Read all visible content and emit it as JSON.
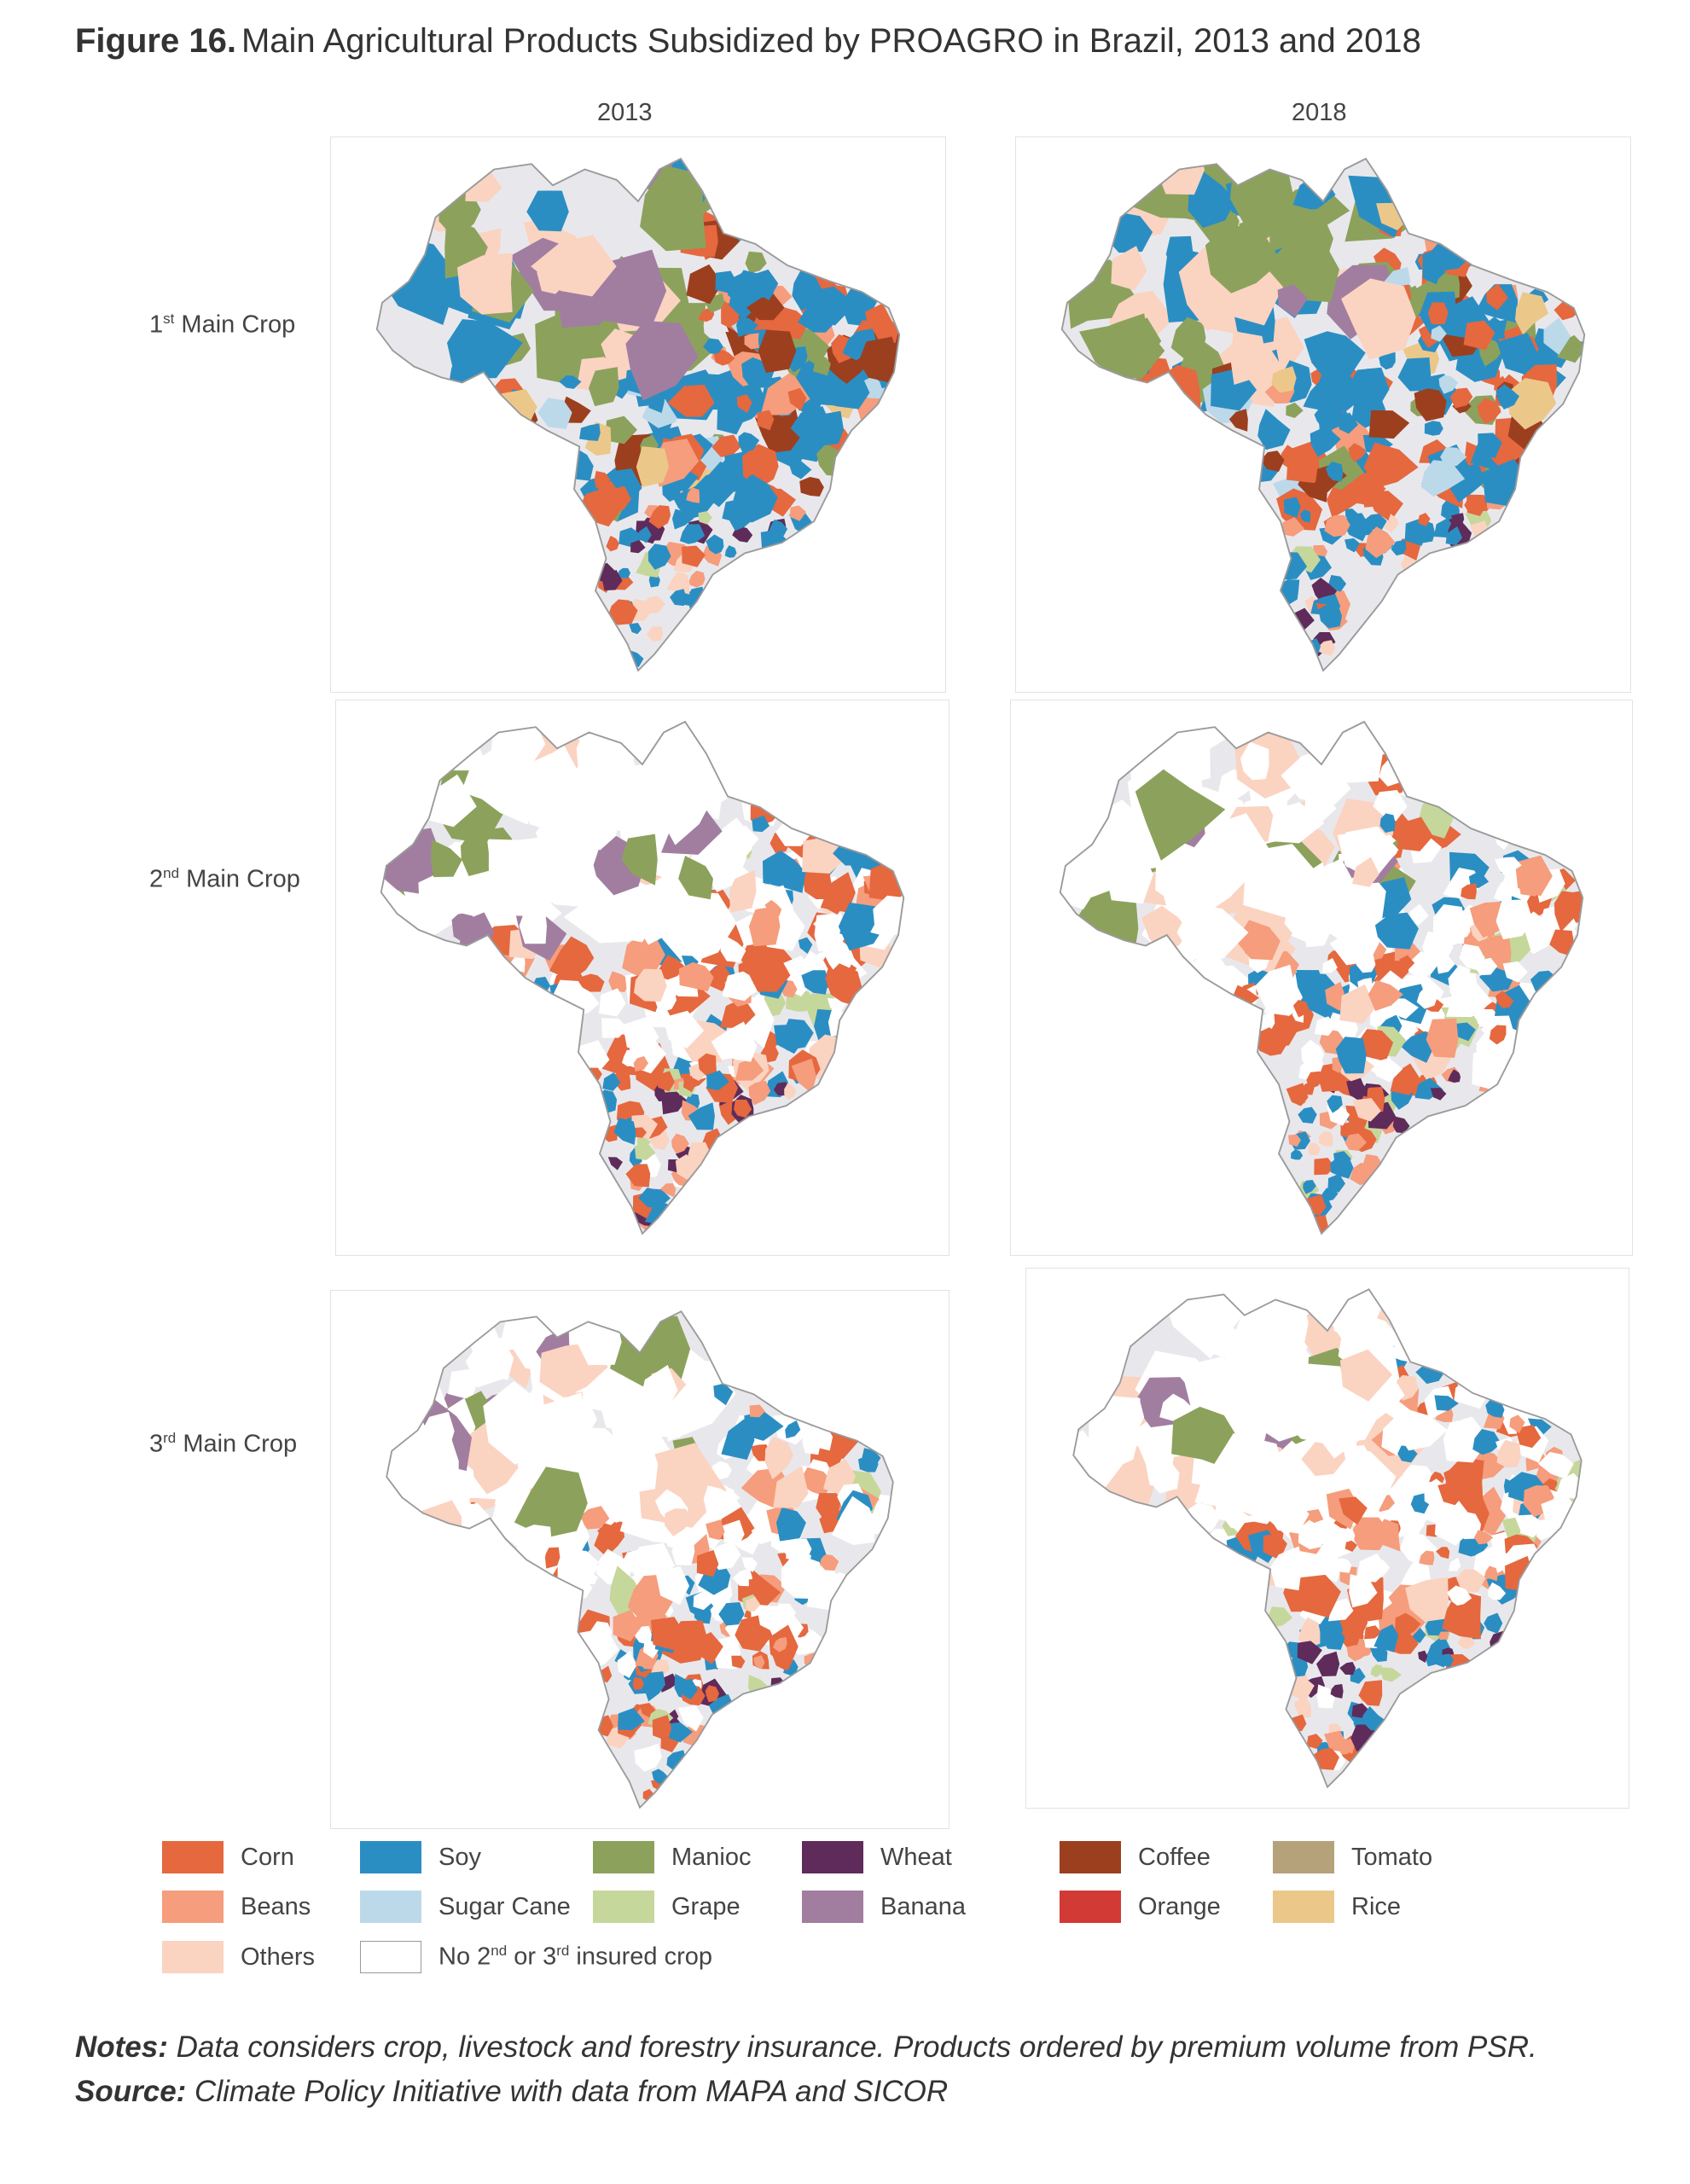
{
  "figure": {
    "label": "Figure 16.",
    "title": "Main Agricultural Products Subsidized by PROAGRO in Brazil, 2013 and 2018"
  },
  "columns": [
    "2013",
    "2018"
  ],
  "rows": [
    {
      "ordinal": "1",
      "suffix": "st",
      "rest": " Main Crop",
      "level": "first"
    },
    {
      "ordinal": "2",
      "suffix": "nd",
      "rest": " Main Crop",
      "level": "second"
    },
    {
      "ordinal": "3",
      "suffix": "rd",
      "rest": " Main Crop",
      "level": "third"
    }
  ],
  "legend": [
    {
      "label": "Corn",
      "color": "#e5683f"
    },
    {
      "label": "Beans",
      "color": "#f59d7c"
    },
    {
      "label": "Others",
      "color": "#fbd3c1"
    },
    {
      "label": "Soy",
      "color": "#2b8ec3"
    },
    {
      "label": "Sugar Cane",
      "color": "#bcd9ea"
    },
    {
      "label": "Manioc",
      "color": "#8ca25c"
    },
    {
      "label": "Grape",
      "color": "#c6d79b"
    },
    {
      "label": "Wheat",
      "color": "#5e2b5a"
    },
    {
      "label": "Banana",
      "color": "#a17e9f"
    },
    {
      "label": "Coffee",
      "color": "#9c3f1f"
    },
    {
      "label": "Orange",
      "color": "#d23a35"
    },
    {
      "label": "Tomato",
      "color": "#b5a27a"
    },
    {
      "label": "Rice",
      "color": "#ebc88a"
    }
  ],
  "no_insured": {
    "pre": "No 2",
    "sup1": "nd",
    "mid": " or 3",
    "sup2": "rd",
    "post": " insured crop",
    "color": "#ffffff"
  },
  "base_colors": {
    "land": "#e8e8ec",
    "border": "#9a9a9a"
  },
  "notes": {
    "label": "Notes:",
    "text": " Data considers crop, livestock and forestry insurance. Products ordered by premium volume from PSR."
  },
  "source": {
    "label": "Source:",
    "text": " Climate Policy Initiative with data from MAPA and SICOR"
  }
}
